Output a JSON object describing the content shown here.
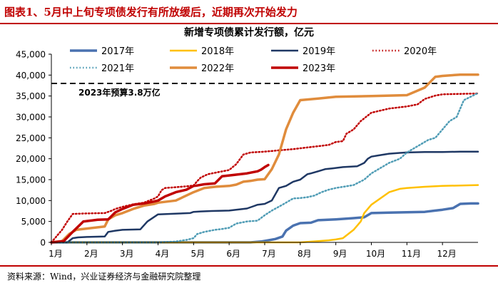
{
  "figure": {
    "title": "图表1、5月中上旬专项债发行有所放缓后，近期再次开始发力",
    "source": "资料来源：Wind，兴业证券经济与金融研究院整理"
  },
  "chart_data": {
    "type": "line",
    "title": "新增专项债累计发行额，亿元",
    "x_unit": "month",
    "xlim": [
      0,
      12
    ],
    "ylim": [
      0,
      45000
    ],
    "y_ticks": [
      0,
      5000,
      10000,
      15000,
      20000,
      25000,
      30000,
      35000,
      40000,
      45000
    ],
    "y_tick_labels": [
      "0",
      "5,000",
      "10,000",
      "15,000",
      "20,000",
      "25,000",
      "30,000",
      "35,000",
      "40,000",
      "45,000"
    ],
    "x_tick_labels": [
      "1月",
      "2月",
      "3月",
      "4月",
      "5月",
      "6月",
      "7月",
      "8月",
      "9月",
      "10月",
      "11月",
      "12月"
    ],
    "grid": false,
    "legend_position": "top",
    "reference_line": {
      "value": 38000,
      "label": "2023年预算3.8万亿",
      "style": "dashed",
      "color": "#000000"
    },
    "series": [
      {
        "name": "2017年",
        "color": "#4a72b0",
        "width": 3.5,
        "dash": "",
        "x": [
          0,
          5.6,
          5.9,
          6.1,
          6.3,
          6.5,
          6.6,
          6.8,
          7.0,
          7.3,
          7.5,
          8.0,
          8.5,
          8.8,
          9.0,
          9.5,
          10.0,
          10.5,
          10.8,
          11.0,
          11.3,
          11.5,
          11.8,
          12.0
        ],
        "y": [
          0,
          0,
          200,
          500,
          800,
          1400,
          2800,
          4000,
          4600,
          4700,
          5300,
          5500,
          5800,
          6000,
          7000,
          7100,
          7200,
          7300,
          7600,
          7800,
          8200,
          9200,
          9300,
          9300
        ]
      },
      {
        "name": "2018年",
        "color": "#ffc000",
        "width": 2.5,
        "dash": "",
        "x": [
          0,
          7.0,
          7.5,
          7.8,
          8.0,
          8.2,
          8.5,
          8.7,
          8.8,
          8.9,
          9.0,
          9.5,
          9.8,
          10.0,
          10.5,
          11.0,
          11.5,
          12.0
        ],
        "y": [
          0,
          0,
          300,
          500,
          700,
          1000,
          3000,
          5000,
          7000,
          8000,
          9000,
          12000,
          12800,
          13000,
          13300,
          13500,
          13600,
          13700
        ]
      },
      {
        "name": "2019年",
        "color": "#1f3864",
        "width": 2.5,
        "dash": "",
        "x": [
          0,
          0.45,
          0.6,
          0.75,
          1.0,
          1.5,
          1.6,
          1.8,
          2.0,
          2.5,
          2.7,
          3.0,
          3.3,
          3.6,
          3.9,
          4.0,
          4.2,
          4.5,
          5.0,
          5.5,
          5.7,
          5.8,
          6.0,
          6.2,
          6.4,
          6.6,
          6.8,
          7.0,
          7.2,
          7.3,
          7.5,
          7.7,
          7.9,
          8.0,
          8.2,
          8.6,
          8.8,
          8.9,
          9.0,
          9.2,
          9.5,
          9.8,
          10.0,
          10.5,
          11.0,
          11.5,
          12.0
        ],
        "y": [
          0,
          0,
          1000,
          1200,
          1300,
          1400,
          2500,
          2800,
          3000,
          3100,
          5000,
          6700,
          6800,
          6900,
          7000,
          7300,
          7400,
          7500,
          7600,
          8100,
          8700,
          9000,
          9200,
          10000,
          13000,
          13500,
          14500,
          15000,
          16300,
          16500,
          17000,
          17500,
          17700,
          17800,
          18000,
          18200,
          19000,
          20000,
          20500,
          20800,
          21200,
          21400,
          21500,
          21600,
          21600,
          21700,
          21700
        ]
      },
      {
        "name": "2020年",
        "color": "#c00000",
        "width": 2.5,
        "dash": "1.5,3",
        "x": [
          0,
          0.3,
          0.45,
          0.6,
          0.9,
          1.2,
          1.5,
          1.7,
          1.8,
          2.0,
          2.3,
          2.6,
          2.9,
          3.0,
          3.1,
          3.2,
          3.5,
          3.8,
          4.0,
          4.1,
          4.2,
          4.4,
          4.7,
          5.0,
          5.2,
          5.4,
          5.6,
          6.0,
          6.4,
          6.8,
          7.0,
          7.5,
          7.8,
          8.0,
          8.2,
          8.3,
          8.5,
          8.7,
          9.0,
          9.3,
          9.5,
          10.0,
          10.3,
          10.5,
          10.8,
          11.0,
          11.5,
          12.0
        ],
        "y": [
          0,
          3000,
          5000,
          6800,
          6900,
          6950,
          7000,
          7600,
          8000,
          8500,
          9100,
          9500,
          10500,
          11000,
          12500,
          13000,
          13200,
          13400,
          13600,
          14600,
          15500,
          16300,
          16800,
          17300,
          18700,
          21000,
          21500,
          21700,
          22000,
          22300,
          22500,
          23000,
          23300,
          24000,
          24200,
          26000,
          27000,
          29000,
          31000,
          31600,
          32000,
          32500,
          33000,
          34300,
          35100,
          35400,
          35500,
          35600
        ]
      },
      {
        "name": "2021年",
        "color": "#4f9cb5",
        "width": 2.5,
        "dash": "1.5,3",
        "x": [
          0,
          3.0,
          3.5,
          3.8,
          4.0,
          4.1,
          4.3,
          4.6,
          4.8,
          5.0,
          5.2,
          5.5,
          5.8,
          6.0,
          6.2,
          6.5,
          6.8,
          7.0,
          7.2,
          7.4,
          7.6,
          7.8,
          8.0,
          8.5,
          8.8,
          9.0,
          9.2,
          9.5,
          9.8,
          10.0,
          10.3,
          10.6,
          10.8,
          11.0,
          11.2,
          11.4,
          11.5,
          11.6,
          12.0
        ],
        "y": [
          0,
          0,
          200,
          600,
          1000,
          2000,
          2500,
          3000,
          3200,
          3500,
          4500,
          5000,
          5200,
          6500,
          7600,
          9000,
          10500,
          10600,
          10800,
          11200,
          12000,
          12600,
          13000,
          13700,
          15000,
          16500,
          17500,
          19000,
          20000,
          21500,
          23000,
          24500,
          25000,
          27000,
          29000,
          30000,
          32000,
          34000,
          35700
        ]
      },
      {
        "name": "2022年",
        "color": "#e08c3c",
        "width": 3.5,
        "dash": "",
        "x": [
          0,
          0.3,
          0.5,
          0.7,
          1.0,
          1.5,
          1.6,
          1.8,
          2.0,
          2.3,
          2.6,
          2.9,
          3.0,
          3.5,
          4.0,
          4.3,
          4.6,
          5.0,
          5.2,
          5.4,
          5.6,
          5.8,
          6.0,
          6.2,
          6.4,
          6.6,
          6.8,
          7.0,
          7.5,
          8.0,
          9.0,
          10.0,
          10.5,
          10.8,
          11.0,
          11.5,
          12.0
        ],
        "y": [
          0,
          300,
          2000,
          3000,
          3300,
          3800,
          5500,
          6500,
          7000,
          8000,
          8800,
          9200,
          9500,
          10000,
          12000,
          13000,
          13300,
          13500,
          13800,
          14500,
          14700,
          15000,
          15100,
          17500,
          21000,
          27000,
          31000,
          34000,
          34400,
          34800,
          35000,
          35200,
          37000,
          39600,
          39800,
          40100,
          40100
        ]
      },
      {
        "name": "2023年",
        "color": "#c00000",
        "width": 3.5,
        "dash": "",
        "x": [
          0,
          0.35,
          0.6,
          0.9,
          1.1,
          1.3,
          1.6,
          1.8,
          2.0,
          2.3,
          2.6,
          2.9,
          3.0,
          3.2,
          3.5,
          3.8,
          4.0,
          4.1,
          4.3,
          4.6,
          4.8,
          5.0,
          5.2,
          5.5,
          5.8,
          5.9,
          6.0,
          6.1
        ],
        "y": [
          0,
          300,
          2500,
          5000,
          5200,
          5400,
          5500,
          7200,
          8000,
          9000,
          9300,
          9800,
          10000,
          11000,
          12000,
          12600,
          13500,
          13600,
          13900,
          14100,
          15800,
          16000,
          16200,
          16500,
          17000,
          17400,
          18000,
          18500
        ]
      }
    ]
  }
}
